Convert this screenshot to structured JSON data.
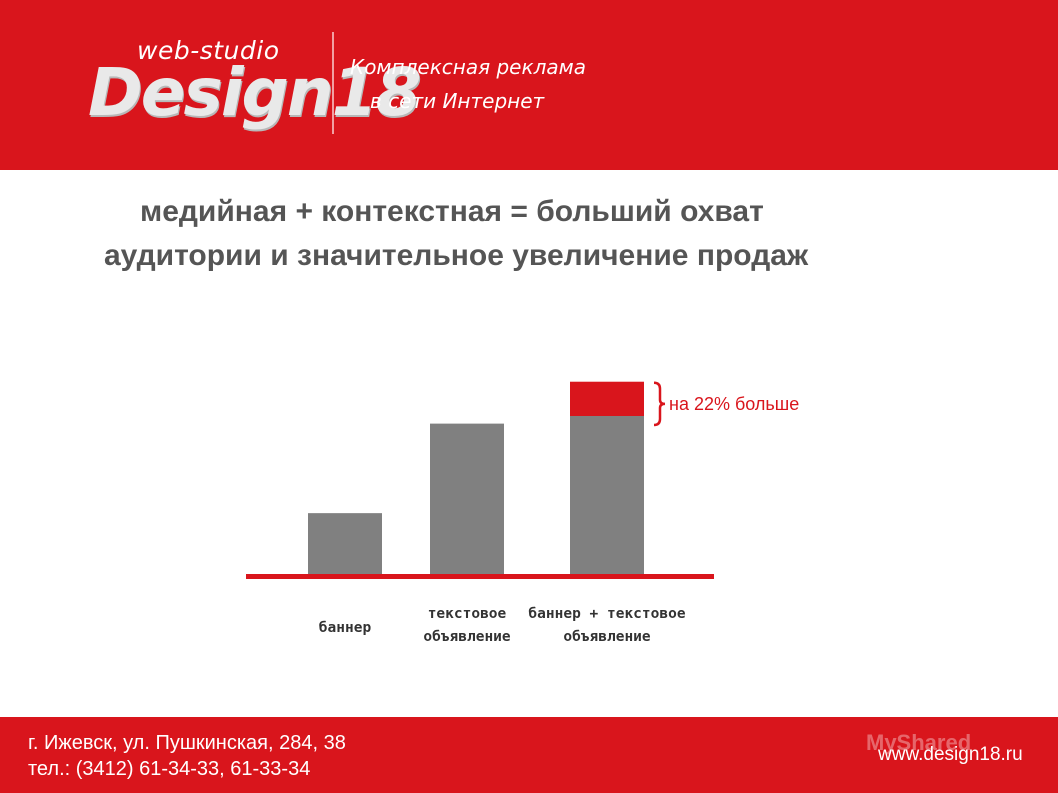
{
  "header": {
    "logo_small": "web-studio",
    "logo_big": "Design18",
    "tagline_line1": "Комплексная реклама",
    "tagline_line2": "в сети Интернет"
  },
  "headline": {
    "line1": "медийная + контекстная = больший охват",
    "line2": "аудитории и значительное увеличение продаж"
  },
  "chart_data": {
    "type": "bar",
    "categories": [
      [
        "баннер"
      ],
      [
        "текстовое",
        "объявление"
      ],
      [
        "баннер + текстовое",
        "объявление"
      ]
    ],
    "values": [
      33,
      80,
      84
    ],
    "increment": {
      "category_index": 2,
      "value": 18,
      "label": "на 22% больше"
    },
    "ylim": [
      0,
      105
    ],
    "colors": {
      "bar": "#808080",
      "increment": "#d9151c",
      "baseline": "#d9151c"
    },
    "grid": false,
    "legend": "none"
  },
  "footer": {
    "address_line1": "г. Ижевск, ул. Пушкинская, 284, 38",
    "address_line2": "тел.: (3412) 61-34-33, 61-33-34",
    "website": "www.design18.ru",
    "watermark": "MyShared"
  }
}
